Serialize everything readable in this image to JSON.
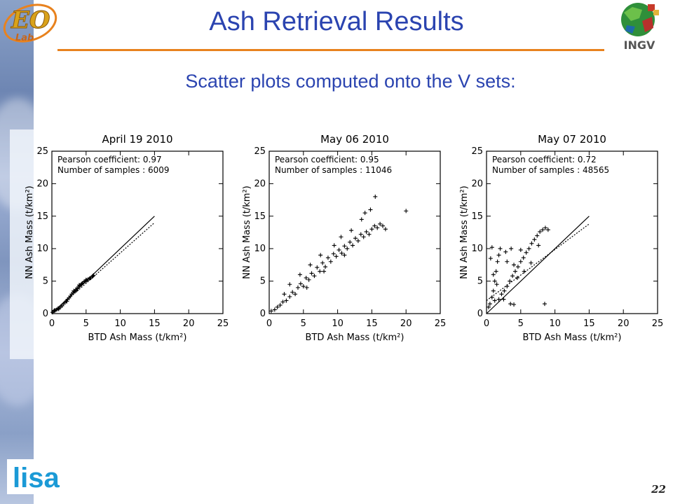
{
  "slide": {
    "title": "Ash Retrieval Results",
    "subtitle": "Scatter plots computed onto the V sets:",
    "page_number": "22",
    "logo_left": "ESO Lab",
    "logo_right_text": "INGV",
    "logo_bottom_text": "lisa"
  },
  "colors": {
    "title": "#2b44b0",
    "rule": "#e8821e",
    "points": "#000000"
  },
  "icons": {
    "left_logo": "eso-lab-logo",
    "right_logo": "ingv-globe-logo",
    "bottom_logo": "lisa-logo"
  },
  "chart_data": [
    {
      "type": "scatter",
      "title": "April 19 2010",
      "xlabel": "BTD Ash Mass (t/km²)",
      "ylabel": "NN Ash Mass (t/km²)",
      "xlim": [
        0,
        25
      ],
      "ylim": [
        0,
        25
      ],
      "xticks": [
        "0",
        "5",
        "10",
        "15",
        "20",
        "25"
      ],
      "yticks": [
        "0",
        "5",
        "10",
        "15",
        "20",
        "25"
      ],
      "annotations": [
        "Pearson coefficient: 0.97",
        "Number of samples : 6009"
      ],
      "reference_line": {
        "x": [
          0,
          15
        ],
        "y": [
          0,
          15
        ],
        "style": "solid"
      },
      "fit_line": {
        "x": [
          0,
          15
        ],
        "y": [
          0,
          14
        ],
        "style": "dotted"
      },
      "series": [
        {
          "values": [
            [
              0.1,
              0.2
            ],
            [
              0.3,
              0.4
            ],
            [
              0.5,
              0.5
            ],
            [
              0.7,
              0.6
            ],
            [
              0.9,
              0.8
            ],
            [
              1.1,
              0.9
            ],
            [
              1.3,
              1.1
            ],
            [
              1.5,
              1.2
            ],
            [
              1.7,
              1.5
            ],
            [
              1.9,
              1.7
            ],
            [
              2.1,
              1.9
            ],
            [
              2.3,
              2.2
            ],
            [
              2.5,
              2.4
            ],
            [
              2.7,
              2.7
            ],
            [
              2.9,
              3.0
            ],
            [
              3.1,
              3.2
            ],
            [
              3.3,
              3.4
            ],
            [
              3.5,
              3.7
            ],
            [
              3.7,
              3.9
            ],
            [
              3.9,
              4.1
            ],
            [
              4.1,
              4.3
            ],
            [
              4.3,
              4.5
            ],
            [
              4.5,
              4.7
            ],
            [
              4.7,
              4.9
            ],
            [
              4.9,
              5.0
            ],
            [
              5.1,
              5.1
            ],
            [
              5.3,
              5.3
            ],
            [
              5.5,
              5.4
            ],
            [
              5.7,
              5.5
            ],
            [
              5.9,
              5.7
            ],
            [
              6.0,
              5.8
            ],
            [
              6.1,
              5.9
            ],
            [
              4.0,
              4.4
            ],
            [
              3.2,
              3.5
            ],
            [
              2.2,
              1.9
            ],
            [
              1.0,
              0.7
            ],
            [
              0.4,
              0.5
            ],
            [
              5.0,
              5.2
            ],
            [
              4.4,
              4.6
            ],
            [
              3.6,
              3.6
            ]
          ]
        }
      ]
    },
    {
      "type": "scatter",
      "title": "May 06 2010",
      "xlabel": "BTD Ash Mass (t/km²)",
      "ylabel": "NN Ash Mass (t/km²)",
      "xlim": [
        0,
        25
      ],
      "ylim": [
        0,
        25
      ],
      "xticks": [
        "0",
        "5",
        "10",
        "15",
        "20",
        "25"
      ],
      "yticks": [
        "0",
        "5",
        "10",
        "15",
        "20",
        "25"
      ],
      "annotations": [
        "Pearson coefficient: 0.95",
        "Number of samples : 11046"
      ],
      "series": [
        {
          "values": [
            [
              0.3,
              0.4
            ],
            [
              0.8,
              0.6
            ],
            [
              1.2,
              1.0
            ],
            [
              1.6,
              1.3
            ],
            [
              2.0,
              1.8
            ],
            [
              2.5,
              2.0
            ],
            [
              3.0,
              2.6
            ],
            [
              3.4,
              3.3
            ],
            [
              3.8,
              3.0
            ],
            [
              4.2,
              4.0
            ],
            [
              4.6,
              4.6
            ],
            [
              5.0,
              4.2
            ],
            [
              5.4,
              5.5
            ],
            [
              5.8,
              5.2
            ],
            [
              6.2,
              6.2
            ],
            [
              6.6,
              5.8
            ],
            [
              7.0,
              7.1
            ],
            [
              7.4,
              6.5
            ],
            [
              7.8,
              7.8
            ],
            [
              8.2,
              7.2
            ],
            [
              8.6,
              8.6
            ],
            [
              9.0,
              8.0
            ],
            [
              9.4,
              9.2
            ],
            [
              9.8,
              8.8
            ],
            [
              10.2,
              9.8
            ],
            [
              10.6,
              9.3
            ],
            [
              11.0,
              10.4
            ],
            [
              11.4,
              10.0
            ],
            [
              11.8,
              11.0
            ],
            [
              12.2,
              10.5
            ],
            [
              12.6,
              11.6
            ],
            [
              13.0,
              11.2
            ],
            [
              13.4,
              12.2
            ],
            [
              13.8,
              11.8
            ],
            [
              14.2,
              12.6
            ],
            [
              14.6,
              12.2
            ],
            [
              15.0,
              13.0
            ],
            [
              15.4,
              13.5
            ],
            [
              15.8,
              13.2
            ],
            [
              16.2,
              13.8
            ],
            [
              16.6,
              13.5
            ],
            [
              15.5,
              18.0
            ],
            [
              14.8,
              16.0
            ],
            [
              14.0,
              15.5
            ],
            [
              6.0,
              7.5
            ],
            [
              5.5,
              4.0
            ],
            [
              7.5,
              9.0
            ],
            [
              9.5,
              10.5
            ],
            [
              8.0,
              6.5
            ],
            [
              3.0,
              4.5
            ],
            [
              2.2,
              3.0
            ],
            [
              10.5,
              11.8
            ],
            [
              12.0,
              12.8
            ],
            [
              11.0,
              9.0
            ],
            [
              4.5,
              6.0
            ],
            [
              20.0,
              15.8
            ],
            [
              17.0,
              13.0
            ],
            [
              13.5,
              14.5
            ]
          ]
        }
      ]
    },
    {
      "type": "scatter",
      "title": "May 07 2010",
      "xlabel": "BTD Ash Mass (t/km²)",
      "ylabel": "NN Ash Mass (t/km²)",
      "xlim": [
        0,
        25
      ],
      "ylim": [
        0,
        25
      ],
      "xticks": [
        "0",
        "5",
        "10",
        "15",
        "20",
        "25"
      ],
      "yticks": [
        "0",
        "5",
        "10",
        "15",
        "20",
        "25"
      ],
      "annotations": [
        "Pearson coefficient: 0.72",
        "Number of samples : 48565"
      ],
      "reference_line": {
        "x": [
          0,
          15
        ],
        "y": [
          0,
          15
        ],
        "style": "solid"
      },
      "fit_line": {
        "x": [
          0,
          15
        ],
        "y": [
          2,
          13.8
        ],
        "style": "dotted"
      },
      "series": [
        {
          "values": [
            [
              0.5,
              1.5
            ],
            [
              0.8,
              2.5
            ],
            [
              1.0,
              3.5
            ],
            [
              1.2,
              5.0
            ],
            [
              1.4,
              6.5
            ],
            [
              1.6,
              8.0
            ],
            [
              1.8,
              9.0
            ],
            [
              2.0,
              10.0
            ],
            [
              1.5,
              4.5
            ],
            [
              1.0,
              6.0
            ],
            [
              0.6,
              8.5
            ],
            [
              0.8,
              10.2
            ],
            [
              1.2,
              2.0
            ],
            [
              1.8,
              2.2
            ],
            [
              2.2,
              3.0
            ],
            [
              2.6,
              3.5
            ],
            [
              3.0,
              4.2
            ],
            [
              3.4,
              5.0
            ],
            [
              3.8,
              5.8
            ],
            [
              4.2,
              6.5
            ],
            [
              4.6,
              7.2
            ],
            [
              5.0,
              8.0
            ],
            [
              5.4,
              8.6
            ],
            [
              5.8,
              9.4
            ],
            [
              6.2,
              10.0
            ],
            [
              6.6,
              10.8
            ],
            [
              7.0,
              11.4
            ],
            [
              7.4,
              12.0
            ],
            [
              7.8,
              12.6
            ],
            [
              8.2,
              12.9
            ],
            [
              8.6,
              13.2
            ],
            [
              9.0,
              12.9
            ],
            [
              3.0,
              8.0
            ],
            [
              4.0,
              7.5
            ],
            [
              5.0,
              9.8
            ],
            [
              3.5,
              1.5
            ],
            [
              4.0,
              1.4
            ],
            [
              8.5,
              1.5
            ],
            [
              2.5,
              2.2
            ],
            [
              4.5,
              5.5
            ],
            [
              5.5,
              6.5
            ],
            [
              6.5,
              7.8
            ],
            [
              0.3,
              1.0
            ],
            [
              2.8,
              9.5
            ],
            [
              3.6,
              10.0
            ],
            [
              7.6,
              10.5
            ]
          ]
        }
      ]
    }
  ]
}
